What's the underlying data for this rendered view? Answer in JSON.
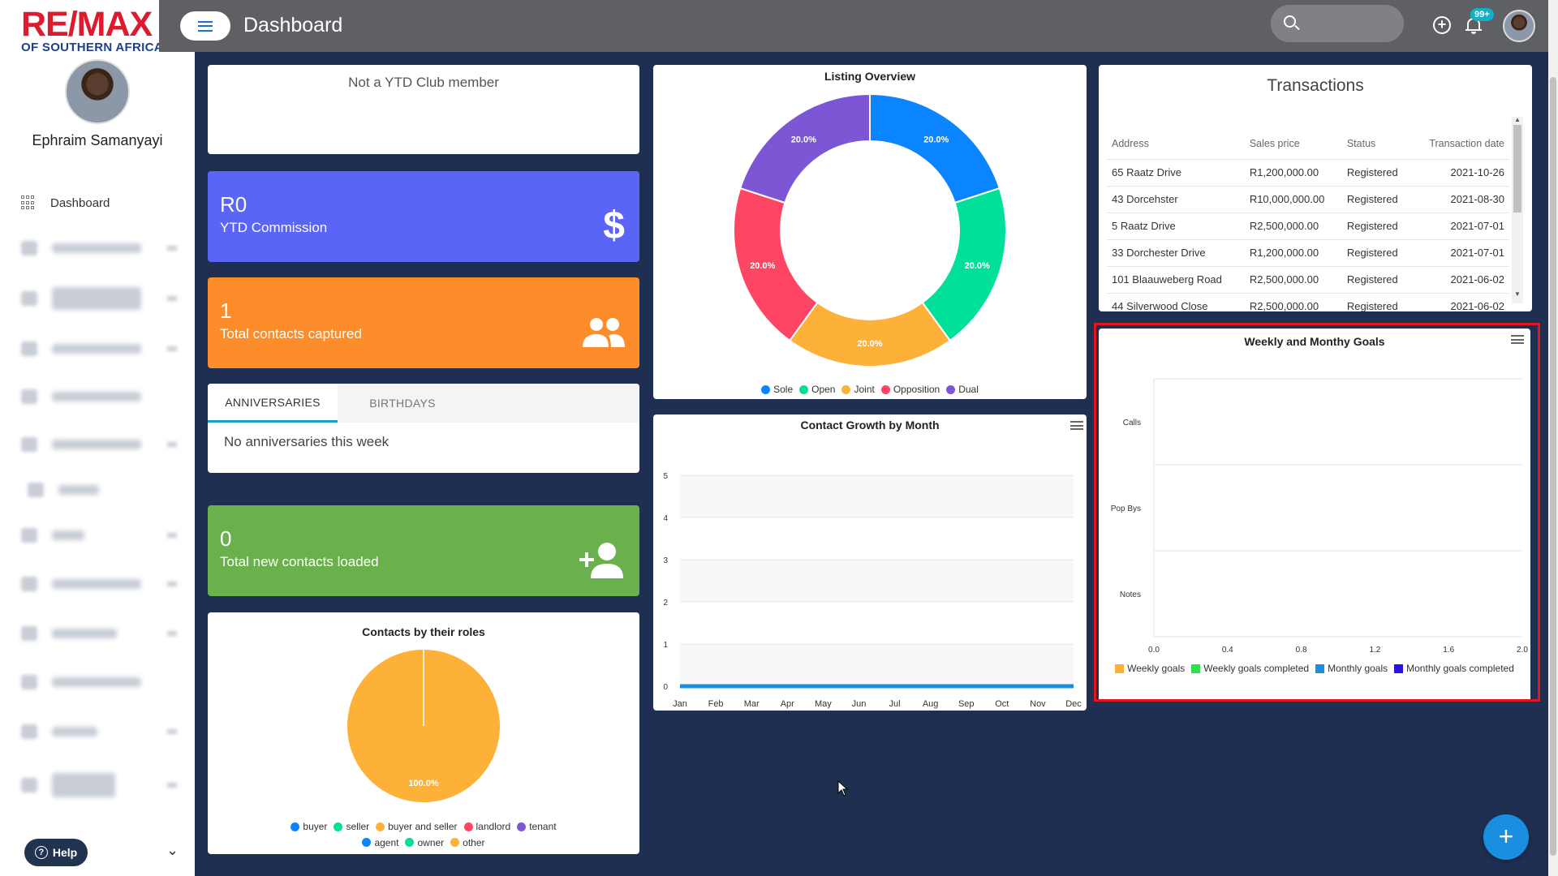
{
  "brand": {
    "logo_main": "RE/MAX",
    "logo_sub": "OF SOUTHERN AFRICA"
  },
  "user": {
    "name": "Ephraim Samanyayi"
  },
  "sidebar": {
    "active_item": "Dashboard",
    "help_label": "Help"
  },
  "header": {
    "title": "Dashboard",
    "notification_count": "99+"
  },
  "ytd_club": {
    "text": "Not a YTD Club member"
  },
  "stats": {
    "commission": {
      "value": "R0",
      "label": "YTD Commission"
    },
    "contacts": {
      "value": "1",
      "label": "Total contacts captured"
    },
    "new_contacts": {
      "value": "0",
      "label": "Total new contacts loaded"
    }
  },
  "celebrations": {
    "tabs": [
      "ANNIVERSARIES",
      "BIRTHDAYS"
    ],
    "active_tab": "ANNIVERSARIES",
    "empty_text": "No anniversaries this week"
  },
  "transactions": {
    "title": "Transactions",
    "columns": [
      "Address",
      "Sales price",
      "Status",
      "Transaction date"
    ],
    "rows": [
      [
        "65 Raatz Drive",
        "R1,200,000.00",
        "Registered",
        "2021-10-26"
      ],
      [
        "43 Dorcehster",
        "R10,000,000.00",
        "Registered",
        "2021-08-30"
      ],
      [
        "5 Raatz Drive",
        "R2,500,000.00",
        "Registered",
        "2021-07-01"
      ],
      [
        "33 Dorchester Drive",
        "R1,200,000.00",
        "Registered",
        "2021-07-01"
      ],
      [
        "101 Blaauweberg Road",
        "R2,500,000.00",
        "Registered",
        "2021-06-02"
      ],
      [
        "44 Silverwood Close",
        "R2,500,000.00",
        "Registered",
        "2021-06-02"
      ]
    ]
  },
  "chart_data": [
    {
      "id": "listing",
      "type": "pie",
      "title": "Listing Overview",
      "donut": true,
      "categories": [
        "Sole",
        "Open",
        "Joint",
        "Opposition",
        "Dual"
      ],
      "values": [
        20,
        20,
        20,
        20,
        20
      ],
      "labels": [
        "20.0%",
        "20.0%",
        "20.0%",
        "20.0%",
        "20.0%"
      ],
      "colors": [
        "#0a84ff",
        "#00e09a",
        "#feb139",
        "#fe4563",
        "#7d56d5"
      ],
      "legend": "bottom"
    },
    {
      "id": "roles",
      "type": "pie",
      "title": "Contacts by their roles",
      "categories": [
        "buyer",
        "seller",
        "buyer and seller",
        "landlord",
        "tenant",
        "agent",
        "owner",
        "other"
      ],
      "values": [
        0,
        0,
        1,
        0,
        0,
        0,
        0,
        0
      ],
      "labels": [
        "100.0%"
      ],
      "colors": [
        "#0a84ff",
        "#00e09a",
        "#feb139",
        "#fe4563",
        "#7d56d5",
        "#0a84ff",
        "#00e09a",
        "#feb139"
      ],
      "legend": "bottom"
    },
    {
      "id": "growth",
      "type": "line",
      "title": "Contact Growth by Month",
      "categories": [
        "Jan",
        "Feb",
        "Mar",
        "Apr",
        "May",
        "Jun",
        "Jul",
        "Aug",
        "Sep",
        "Oct",
        "Nov",
        "Dec"
      ],
      "series": [
        {
          "values": [
            0,
            0,
            0,
            0,
            0,
            0,
            0,
            0,
            0,
            0,
            0,
            0
          ],
          "color": "#1a8fe0"
        }
      ],
      "ylim": [
        0,
        5
      ],
      "yticks": [
        "0",
        "1",
        "2",
        "3",
        "4",
        "5"
      ],
      "grid": true
    },
    {
      "id": "goals",
      "type": "bar",
      "orientation": "horizontal",
      "title": "Weekly and Monthy Goals",
      "categories": [
        "Calls",
        "Pop Bys",
        "Notes"
      ],
      "xlim": [
        0,
        2
      ],
      "xticks": [
        "0.0",
        "0.4",
        "0.8",
        "1.2",
        "1.6",
        "2.0"
      ],
      "series": [
        {
          "name": "Weekly goals",
          "values": [
            0,
            0,
            0
          ],
          "color": "#feb139"
        },
        {
          "name": "Weekly goals completed",
          "values": [
            0,
            0,
            0
          ],
          "color": "#2ee04a"
        },
        {
          "name": "Monthly goals",
          "values": [
            0,
            0,
            0
          ],
          "color": "#1a8fe0"
        },
        {
          "name": "Monthly goals completed",
          "values": [
            0,
            0,
            0
          ],
          "color": "#2a14e0"
        }
      ],
      "legend": "bottom"
    }
  ]
}
